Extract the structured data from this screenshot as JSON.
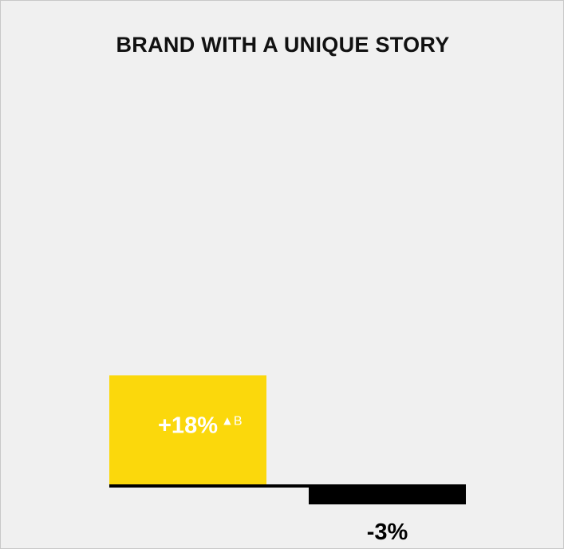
{
  "chart_data": {
    "type": "bar",
    "title": "BRAND WITH A UNIQUE STORY",
    "categories": [
      "",
      ""
    ],
    "values": [
      18,
      -3
    ],
    "labels": [
      "+18%",
      "-3%"
    ],
    "significance": [
      "▲B",
      ""
    ],
    "colors": [
      "#fbd80c",
      "#000000"
    ],
    "label_colors": [
      "#ffffff",
      "#000000"
    ],
    "baseline_color": "#000000",
    "background": "#f0f0f0",
    "ylim": [
      -3,
      18
    ],
    "grid": false,
    "legend": "none"
  }
}
